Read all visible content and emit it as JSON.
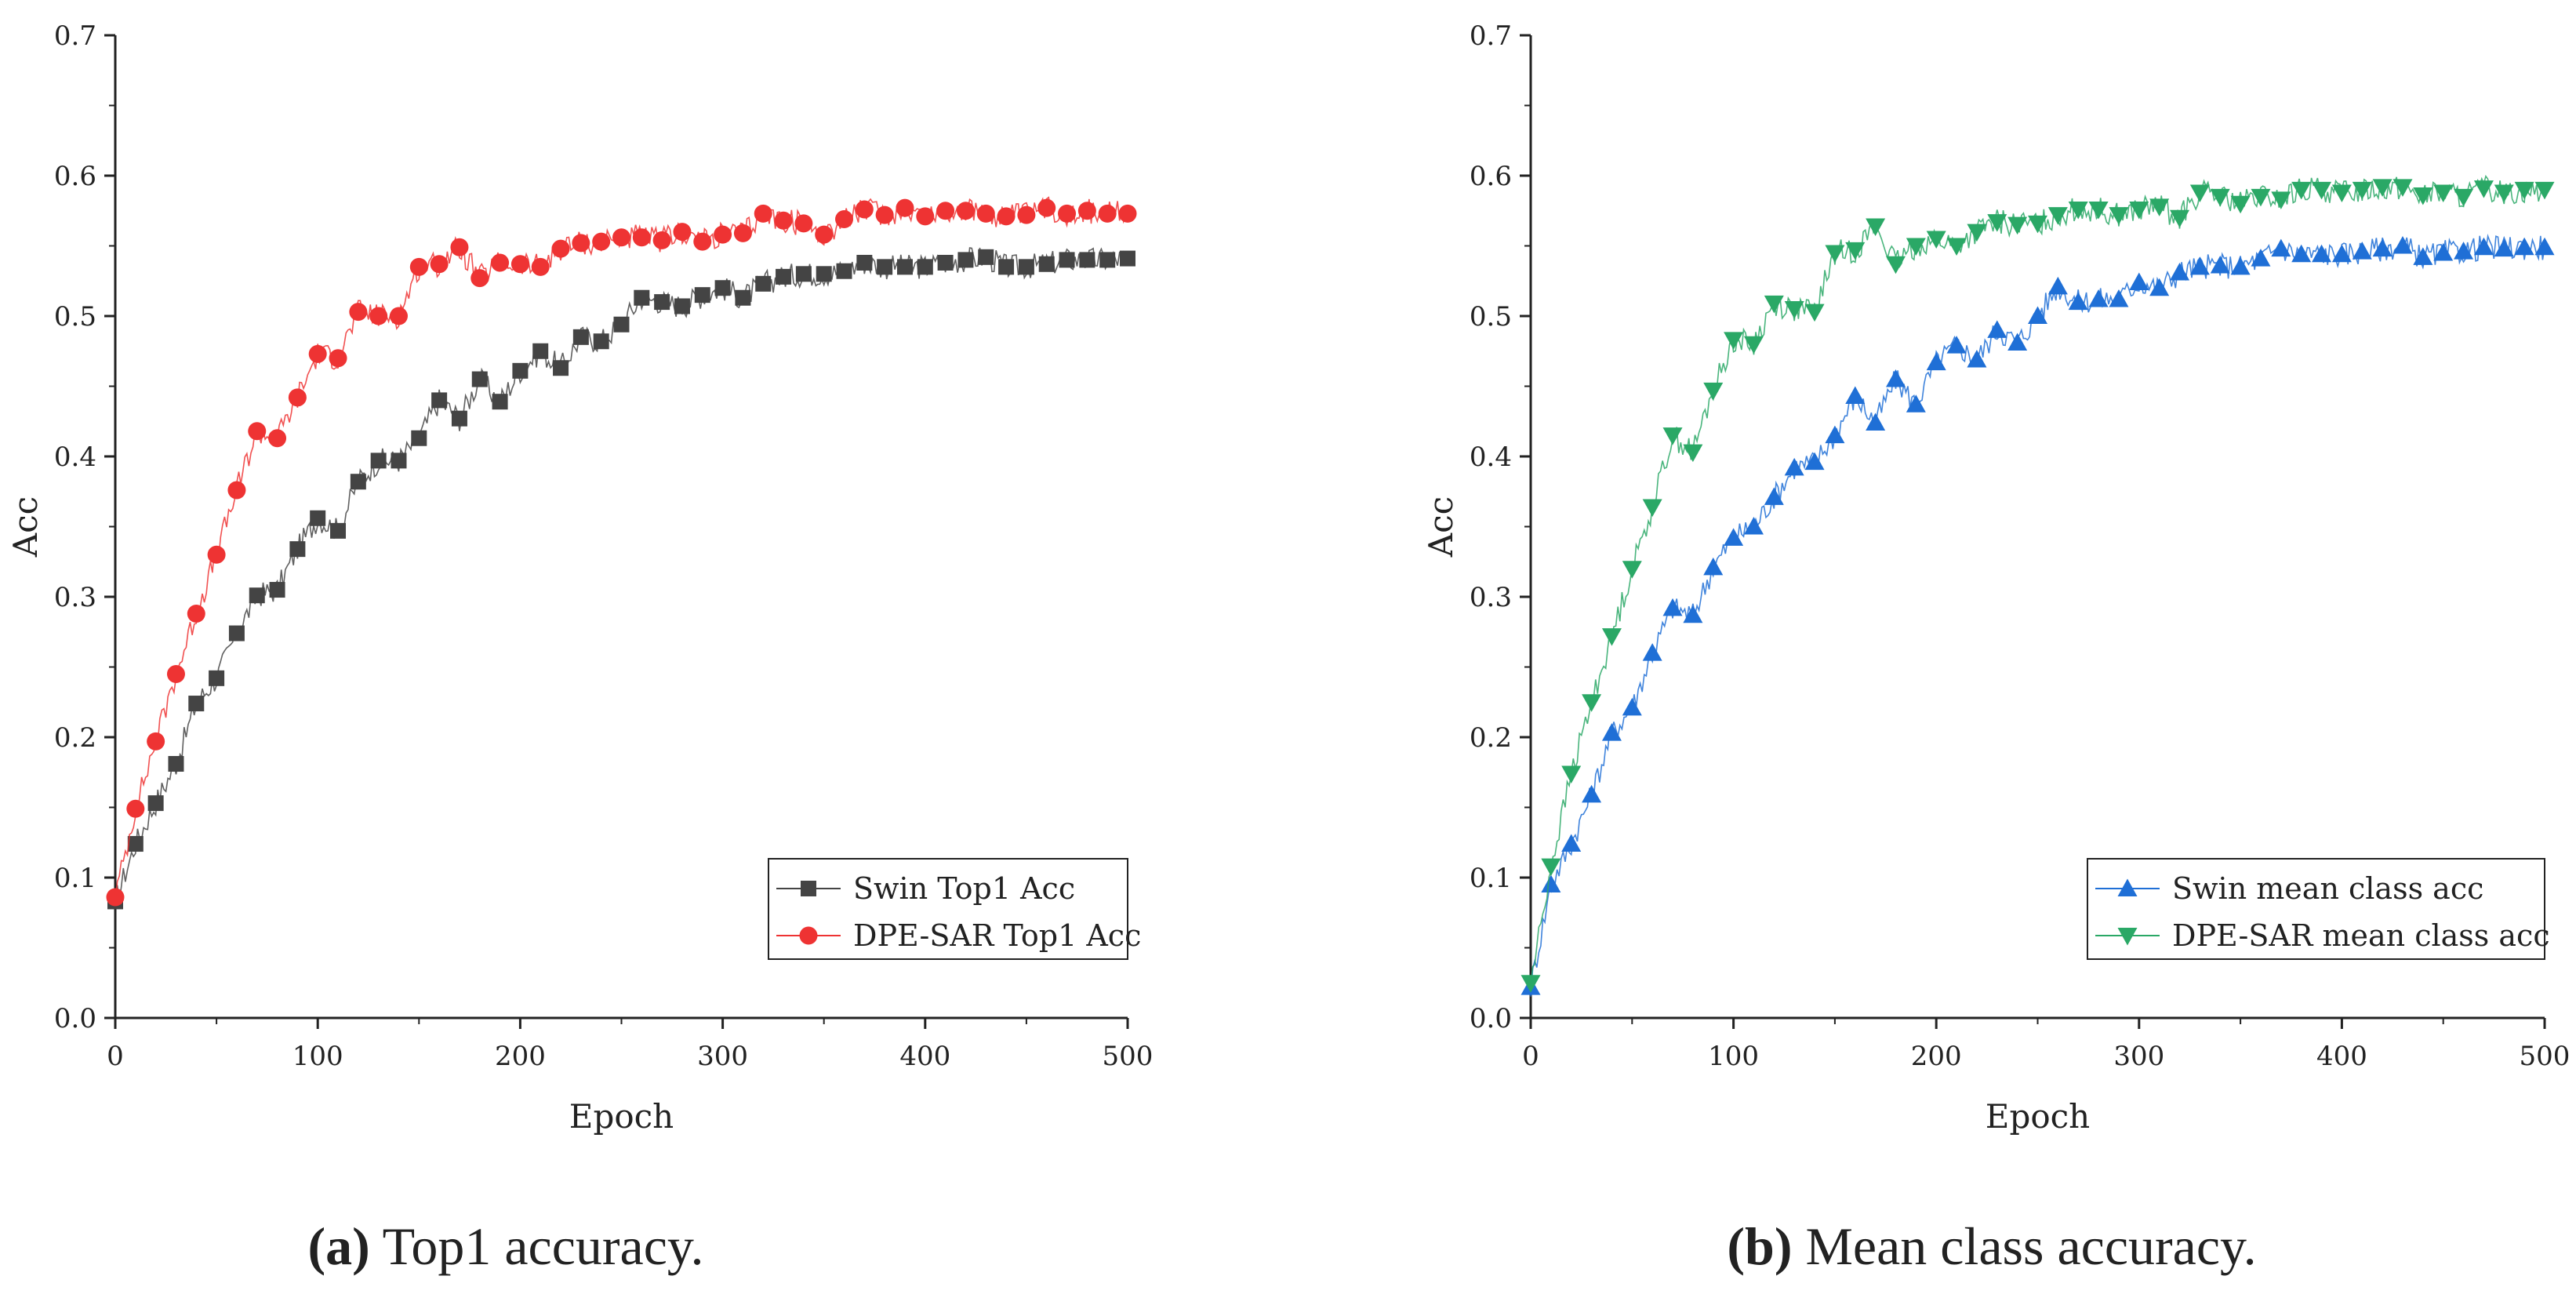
{
  "colors": {
    "axis": "#222222",
    "swin_top1": "#444444",
    "dpe_top1": "#ee3333",
    "swin_mean": "#1f6fd6",
    "dpe_mean": "#2aa866"
  },
  "chart_data": [
    {
      "type": "line",
      "panel": "a",
      "caption_letter": "(a)",
      "caption_text": " Top1 accuracy.",
      "xlabel": "Epoch",
      "ylabel": "Acc",
      "xlim": [
        0,
        500
      ],
      "ylim": [
        0.0,
        0.7
      ],
      "xticks": [
        "0",
        "100",
        "200",
        "300",
        "400",
        "500"
      ],
      "yticks": [
        "0.0",
        "0.1",
        "0.2",
        "0.3",
        "0.4",
        "0.5",
        "0.6",
        "0.7"
      ],
      "grid": false,
      "legend_position": "bottom-right",
      "x": [
        0,
        10,
        20,
        30,
        40,
        50,
        60,
        70,
        80,
        90,
        100,
        110,
        120,
        130,
        140,
        150,
        160,
        170,
        180,
        190,
        200,
        210,
        220,
        230,
        240,
        250,
        260,
        270,
        280,
        290,
        300,
        310,
        320,
        330,
        340,
        350,
        360,
        370,
        380,
        390,
        400,
        410,
        420,
        430,
        440,
        450,
        460,
        470,
        480,
        490,
        500
      ],
      "series": [
        {
          "name": "Swin Top1 Acc",
          "marker": "square",
          "color": "#444444",
          "values": [
            0.083,
            0.124,
            0.153,
            0.181,
            0.224,
            0.242,
            0.274,
            0.301,
            0.305,
            0.334,
            0.356,
            0.347,
            0.382,
            0.397,
            0.397,
            0.413,
            0.44,
            0.427,
            0.455,
            0.439,
            0.461,
            0.475,
            0.463,
            0.485,
            0.482,
            0.494,
            0.513,
            0.51,
            0.507,
            0.515,
            0.52,
            0.513,
            0.523,
            0.528,
            0.53,
            0.53,
            0.532,
            0.538,
            0.535,
            0.535,
            0.535,
            0.538,
            0.54,
            0.542,
            0.535,
            0.535,
            0.537,
            0.54,
            0.54,
            0.54,
            0.541
          ]
        },
        {
          "name": "DPE-SAR Top1 Acc",
          "marker": "circle",
          "color": "#ee3333",
          "values": [
            0.086,
            0.149,
            0.197,
            0.245,
            0.288,
            0.33,
            0.376,
            0.418,
            0.413,
            0.442,
            0.473,
            0.47,
            0.503,
            0.5,
            0.5,
            0.535,
            0.537,
            0.549,
            0.527,
            0.538,
            0.537,
            0.535,
            0.548,
            0.552,
            0.553,
            0.556,
            0.556,
            0.554,
            0.56,
            0.553,
            0.558,
            0.559,
            0.573,
            0.568,
            0.566,
            0.558,
            0.569,
            0.576,
            0.572,
            0.577,
            0.571,
            0.575,
            0.575,
            0.573,
            0.571,
            0.572,
            0.577,
            0.573,
            0.575,
            0.573,
            0.573
          ]
        }
      ]
    },
    {
      "type": "line",
      "panel": "b",
      "caption_letter": "(b)",
      "caption_text": " Mean class accuracy.",
      "xlabel": "Epoch",
      "ylabel": "Acc",
      "xlim": [
        0,
        500
      ],
      "ylim": [
        0.0,
        0.7
      ],
      "xticks": [
        "0",
        "100",
        "200",
        "300",
        "400",
        "500"
      ],
      "yticks": [
        "0.0",
        "0.1",
        "0.2",
        "0.3",
        "0.4",
        "0.5",
        "0.6",
        "0.7"
      ],
      "grid": false,
      "legend_position": "bottom-right",
      "x": [
        0,
        10,
        20,
        30,
        40,
        50,
        60,
        70,
        80,
        90,
        100,
        110,
        120,
        130,
        140,
        150,
        160,
        170,
        180,
        190,
        200,
        210,
        220,
        230,
        240,
        250,
        260,
        270,
        280,
        290,
        300,
        310,
        320,
        330,
        340,
        350,
        360,
        370,
        380,
        390,
        400,
        410,
        420,
        430,
        440,
        450,
        460,
        470,
        480,
        490,
        500
      ],
      "series": [
        {
          "name": "Swin mean class acc",
          "marker": "triangle-up",
          "color": "#1f6fd6",
          "values": [
            0.022,
            0.095,
            0.124,
            0.159,
            0.203,
            0.221,
            0.26,
            0.292,
            0.287,
            0.321,
            0.342,
            0.35,
            0.371,
            0.392,
            0.396,
            0.415,
            0.443,
            0.424,
            0.455,
            0.437,
            0.467,
            0.479,
            0.469,
            0.49,
            0.481,
            0.5,
            0.521,
            0.51,
            0.512,
            0.512,
            0.524,
            0.52,
            0.531,
            0.535,
            0.536,
            0.535,
            0.541,
            0.548,
            0.544,
            0.544,
            0.544,
            0.546,
            0.548,
            0.55,
            0.542,
            0.545,
            0.546,
            0.549,
            0.548,
            0.549,
            0.549
          ]
        },
        {
          "name": "DPE-SAR mean class acc",
          "marker": "triangle-down",
          "color": "#2aa866",
          "values": [
            0.025,
            0.108,
            0.174,
            0.225,
            0.272,
            0.32,
            0.364,
            0.415,
            0.403,
            0.447,
            0.483,
            0.48,
            0.509,
            0.505,
            0.503,
            0.545,
            0.547,
            0.564,
            0.537,
            0.55,
            0.555,
            0.55,
            0.56,
            0.567,
            0.565,
            0.566,
            0.572,
            0.576,
            0.576,
            0.572,
            0.576,
            0.578,
            0.57,
            0.588,
            0.585,
            0.58,
            0.585,
            0.583,
            0.59,
            0.59,
            0.588,
            0.59,
            0.592,
            0.592,
            0.586,
            0.588,
            0.585,
            0.591,
            0.588,
            0.59,
            0.59
          ]
        }
      ]
    }
  ]
}
